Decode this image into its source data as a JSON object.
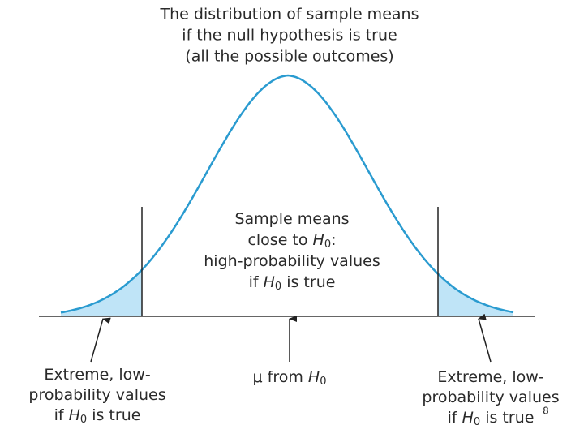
{
  "title": [
    "The distribution of sample means",
    "if the null hypothesis is true",
    "(all the possible outcomes)"
  ],
  "center_label": [
    [
      "Sample means"
    ],
    [
      "close to ",
      "H",
      "0",
      ":"
    ],
    [
      "high-probability values"
    ],
    [
      "if ",
      "H",
      "0",
      " is true"
    ]
  ],
  "left_label": [
    [
      "Extreme, low-"
    ],
    [
      "probability values"
    ],
    [
      "if ",
      "H",
      "0",
      " is true"
    ]
  ],
  "mean_label": [
    "μ from ",
    "H",
    "0"
  ],
  "right_label": [
    [
      "Extreme, low-"
    ],
    [
      "probability values"
    ],
    [
      "if ",
      "H",
      "0",
      " is true"
    ]
  ],
  "page_number": "8"
}
